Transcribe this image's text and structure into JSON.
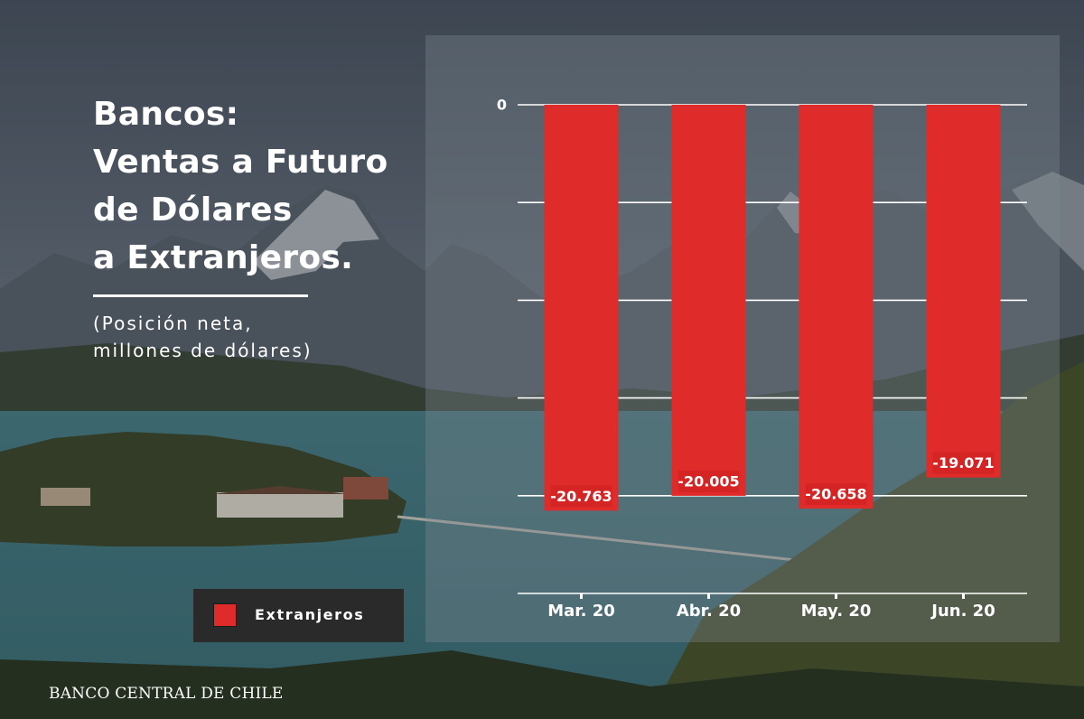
{
  "title_lines": [
    "Bancos:",
    "Ventas a Futuro",
    "de Dólares",
    "a Extranjeros."
  ],
  "subtitle_lines": [
    "(Posición neta,",
    "millones de dólares)"
  ],
  "footer_brand": "BANCO CENTRAL DE CHILE",
  "colors": {
    "bar": "#e02b2b",
    "text": "#ffffff",
    "legend_bg": "#2a2a2a",
    "data_label_bg": "#d42424"
  },
  "chart_data": {
    "type": "bar",
    "categories": [
      "Mar. 20",
      "Abr. 20",
      "May. 20",
      "Jun. 20"
    ],
    "series": [
      {
        "name": "Extranjeros",
        "values": [
          -20763,
          -20005,
          -20658,
          -19071
        ],
        "labels": [
          "-20.763",
          "-20.005",
          "-20.658",
          "-19.071"
        ]
      }
    ],
    "ylim": [
      -25000,
      0
    ],
    "y_ticks": [
      0,
      -5000,
      -10000,
      -15000,
      -20000,
      -25000
    ],
    "y_tick_labels": [
      "0",
      "",
      "",
      "",
      "",
      ""
    ],
    "grid": true,
    "legend": "bottom-left"
  }
}
